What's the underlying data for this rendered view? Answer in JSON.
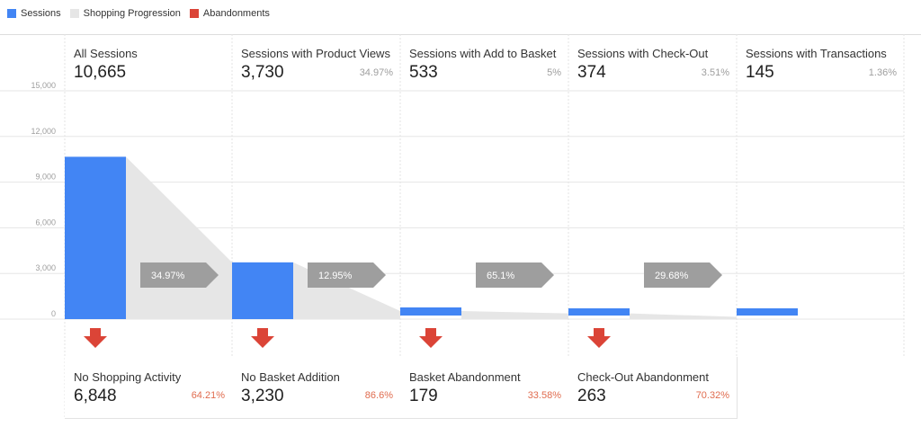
{
  "legend": {
    "sessions": {
      "label": "Sessions",
      "color": "#4285f4"
    },
    "progression": {
      "label": "Shopping Progression",
      "color": "#e6e6e6"
    },
    "abandonments": {
      "label": "Abandonments",
      "color": "#db4437"
    }
  },
  "stages": [
    {
      "name": "All Sessions",
      "value": "10,665",
      "pct": ""
    },
    {
      "name": "Sessions with Product Views",
      "value": "3,730",
      "pct": "34.97%"
    },
    {
      "name": "Sessions with Add to Basket",
      "value": "533",
      "pct": "5%"
    },
    {
      "name": "Sessions with Check-Out",
      "value": "374",
      "pct": "3.51%"
    },
    {
      "name": "Sessions with Transactions",
      "value": "145",
      "pct": "1.36%"
    }
  ],
  "abandonments": [
    {
      "name": "No Shopping Activity",
      "value": "6,848",
      "pct": "64.21%"
    },
    {
      "name": "No Basket Addition",
      "value": "3,230",
      "pct": "86.6%"
    },
    {
      "name": "Basket Abandonment",
      "value": "179",
      "pct": "33.58%"
    },
    {
      "name": "Check-Out Abandonment",
      "value": "263",
      "pct": "70.32%"
    }
  ],
  "conversions": [
    "34.97%",
    "12.95%",
    "65.1%",
    "29.68%"
  ],
  "chart_data": {
    "type": "bar",
    "categories": [
      "All Sessions",
      "Sessions with Product Views",
      "Sessions with Add to Basket",
      "Sessions with Check-Out",
      "Sessions with Transactions"
    ],
    "values": [
      10665,
      3730,
      533,
      374,
      145
    ],
    "ylim": [
      0,
      15000
    ],
    "yticks": [
      0,
      3000,
      6000,
      9000,
      12000,
      15000
    ],
    "ytick_labels": [
      "0",
      "3,000",
      "6,000",
      "9,000",
      "12,000",
      "15,000"
    ],
    "grid": true,
    "legend_position": "top-left"
  }
}
